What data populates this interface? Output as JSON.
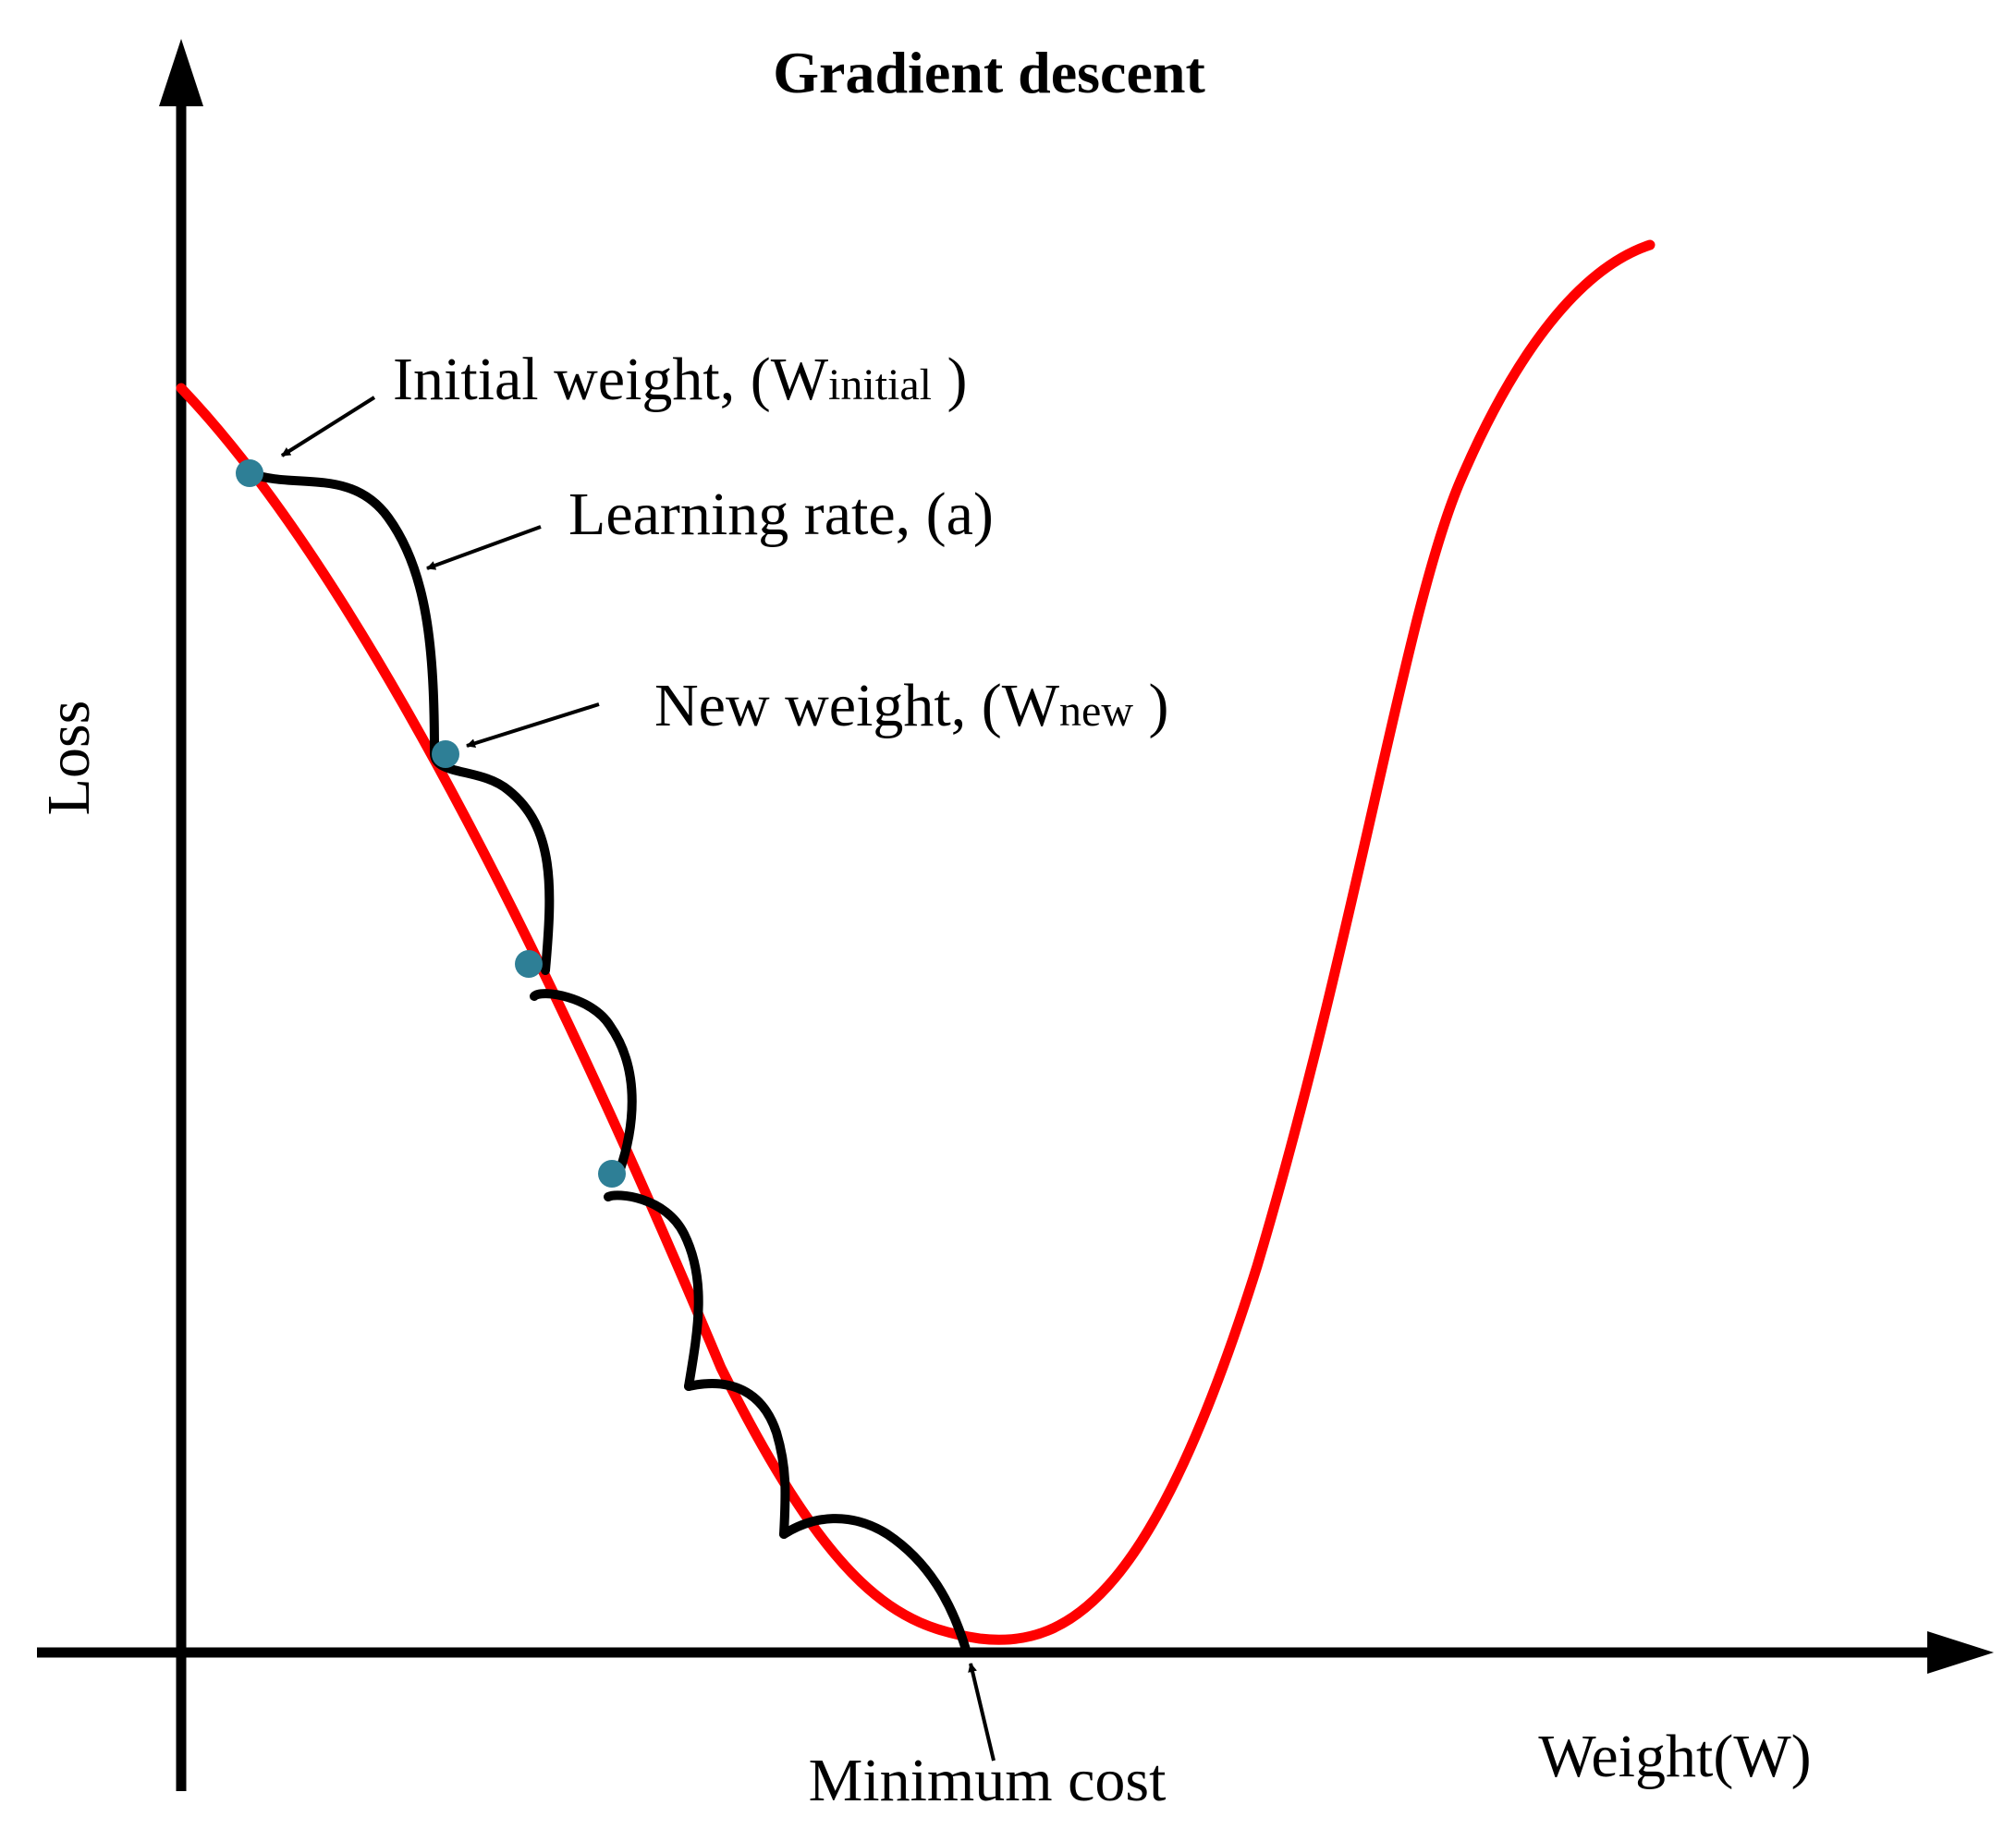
{
  "title": "Gradient descent",
  "axes": {
    "y_label": "Loss",
    "x_label": "Weight(W)"
  },
  "annotations": {
    "initial_weight": {
      "text": "Initial weight, (W",
      "subscript": "initial",
      "close": " )"
    },
    "learning_rate": {
      "text": "Learning rate, (a)"
    },
    "new_weight": {
      "text": "New weight,  (W",
      "subscript": "new",
      "close": " )"
    },
    "minimum_cost": {
      "text": "Minimum cost"
    }
  },
  "colors": {
    "loss_curve": "#ff0000",
    "steps": "#000000",
    "points": "#2e7f96",
    "axes": "#000000"
  }
}
